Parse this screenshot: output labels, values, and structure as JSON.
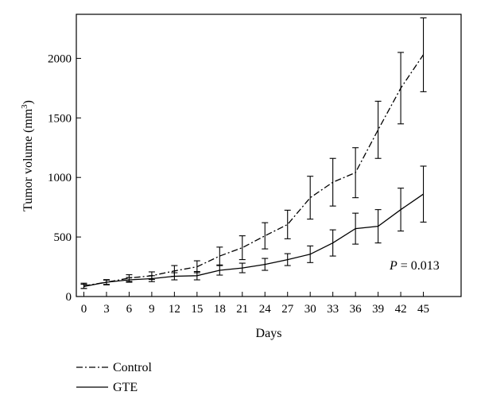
{
  "chart_data": {
    "type": "line",
    "xlabel": "Days",
    "ylabel": "Tumor volume (mm",
    "ylabel_sup": "3",
    "ylabel_close": ")",
    "x": [
      0,
      3,
      6,
      9,
      12,
      15,
      18,
      21,
      24,
      27,
      30,
      33,
      36,
      39,
      42,
      45
    ],
    "xlim": [
      -1,
      50
    ],
    "ylim": [
      0,
      2370
    ],
    "xticks": [
      0,
      3,
      6,
      9,
      12,
      15,
      18,
      21,
      24,
      27,
      30,
      33,
      36,
      39,
      42,
      45
    ],
    "yticks": [
      0,
      500,
      1000,
      1500,
      2000
    ],
    "series": [
      {
        "name": "Control",
        "style": "dash-dot",
        "values": [
          90,
          120,
          155,
          175,
          215,
          250,
          340,
          410,
          510,
          605,
          830,
          960,
          1040,
          1400,
          1750,
          2030
        ],
        "errors": [
          22,
          22,
          28,
          32,
          45,
          50,
          75,
          100,
          110,
          120,
          180,
          200,
          210,
          240,
          300,
          310
        ]
      },
      {
        "name": "GTE",
        "style": "solid",
        "values": [
          85,
          120,
          140,
          150,
          170,
          175,
          220,
          240,
          270,
          310,
          355,
          450,
          570,
          590,
          730,
          860
        ],
        "errors": [
          18,
          18,
          20,
          25,
          30,
          35,
          40,
          40,
          50,
          50,
          70,
          110,
          130,
          140,
          180,
          235
        ]
      }
    ],
    "annotation": {
      "label": "P",
      "text": " = 0.013"
    },
    "legend_placement": "bottom-left"
  }
}
